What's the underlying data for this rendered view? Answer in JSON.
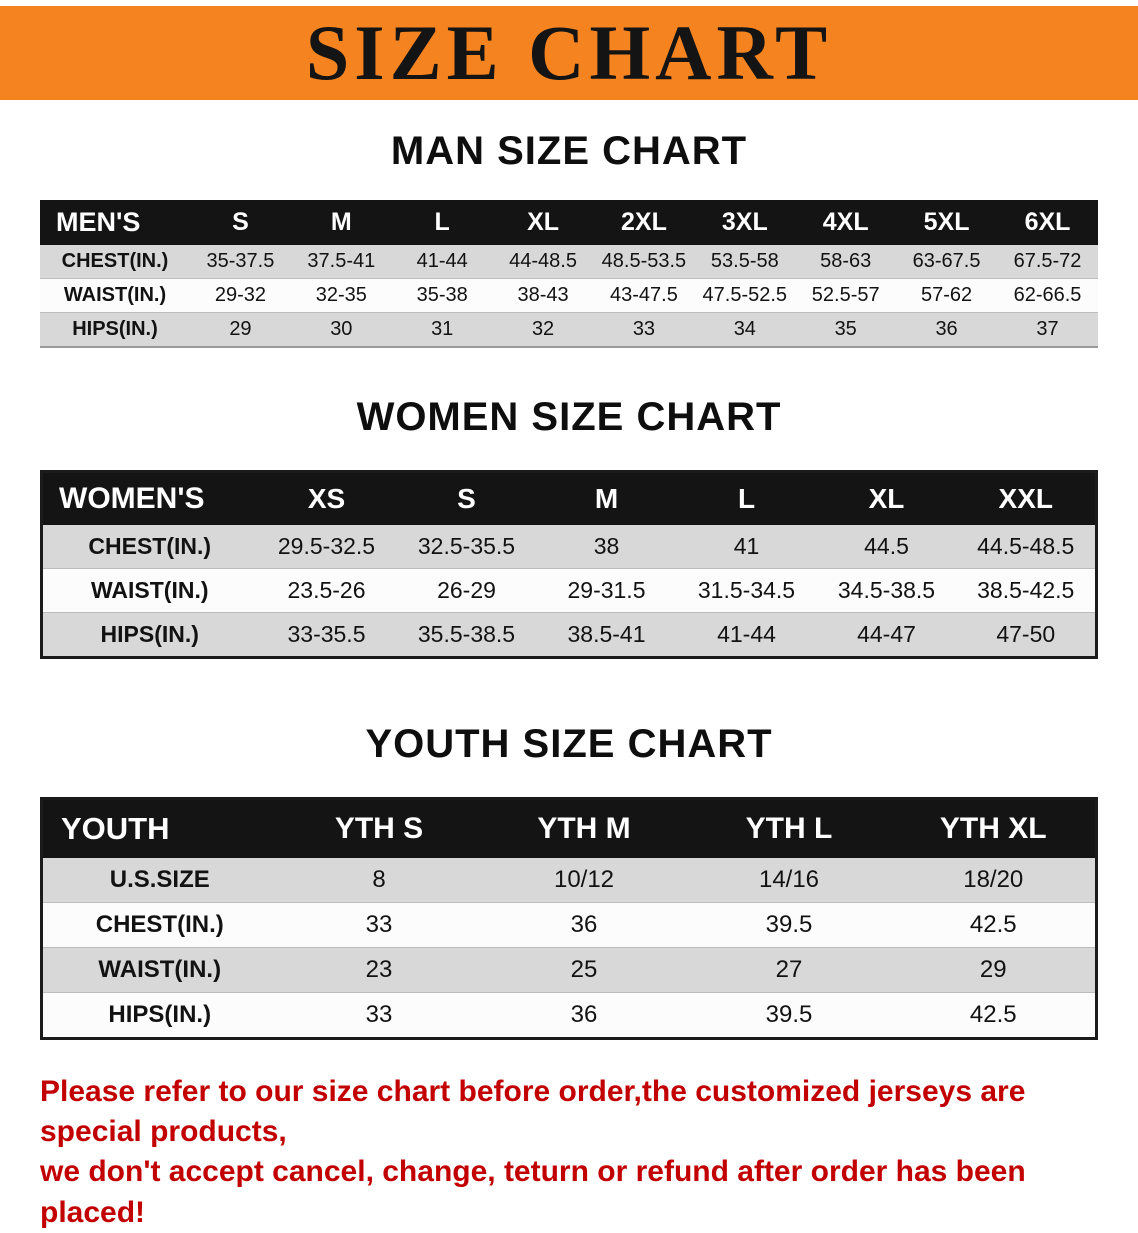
{
  "banner": {
    "title": "SIZE CHART"
  },
  "sections": [
    {
      "id": "men",
      "heading": "MAN SIZE CHART",
      "table": {
        "label": "MEN'S",
        "columns": [
          "S",
          "M",
          "L",
          "XL",
          "2XL",
          "3XL",
          "4XL",
          "5XL",
          "6XL"
        ],
        "rows": [
          {
            "label": "CHEST(IN.)",
            "values": [
              "35-37.5",
              "37.5-41",
              "41-44",
              "44-48.5",
              "48.5-53.5",
              "53.5-58",
              "58-63",
              "63-67.5",
              "67.5-72"
            ]
          },
          {
            "label": "WAIST(IN.)",
            "values": [
              "29-32",
              "32-35",
              "35-38",
              "38-43",
              "43-47.5",
              "47.5-52.5",
              "52.5-57",
              "57-62",
              "62-66.5"
            ]
          },
          {
            "label": "HIPS(IN.)",
            "values": [
              "29",
              "30",
              "31",
              "32",
              "33",
              "34",
              "35",
              "36",
              "37"
            ]
          }
        ]
      }
    },
    {
      "id": "women",
      "heading": "WOMEN SIZE CHART",
      "table": {
        "label": "WOMEN'S",
        "columns": [
          "XS",
          "S",
          "M",
          "L",
          "XL",
          "XXL"
        ],
        "rows": [
          {
            "label": "CHEST(IN.)",
            "values": [
              "29.5-32.5",
              "32.5-35.5",
              "38",
              "41",
              "44.5",
              "44.5-48.5"
            ]
          },
          {
            "label": "WAIST(IN.)",
            "values": [
              "23.5-26",
              "26-29",
              "29-31.5",
              "31.5-34.5",
              "34.5-38.5",
              "38.5-42.5"
            ]
          },
          {
            "label": "HIPS(IN.)",
            "values": [
              "33-35.5",
              "35.5-38.5",
              "38.5-41",
              "41-44",
              "44-47",
              "47-50"
            ]
          }
        ]
      }
    },
    {
      "id": "youth",
      "heading": "YOUTH SIZE CHART",
      "table": {
        "label": "YOUTH",
        "columns": [
          "YTH S",
          "YTH M",
          "YTH L",
          "YTH XL"
        ],
        "rows": [
          {
            "label": "U.S.SIZE",
            "values": [
              "8",
              "10/12",
              "14/16",
              "18/20"
            ]
          },
          {
            "label": "CHEST(IN.)",
            "values": [
              "33",
              "36",
              "39.5",
              "42.5"
            ]
          },
          {
            "label": "WAIST(IN.)",
            "values": [
              "23",
              "25",
              "27",
              "29"
            ]
          },
          {
            "label": "HIPS(IN.)",
            "values": [
              "33",
              "36",
              "39.5",
              "42.5"
            ]
          }
        ]
      }
    }
  ],
  "footer": {
    "lines": [
      "Please refer to our size chart before order,the customized jerseys are special products,",
      "we don't accept cancel, change, teturn or refund after order has been placed!"
    ]
  },
  "colors": {
    "banner_orange": "#f5831f",
    "header_black": "#141414",
    "row_gray": "#d8d8d8",
    "row_white": "#fcfcfc",
    "footer_red": "#c20000"
  }
}
